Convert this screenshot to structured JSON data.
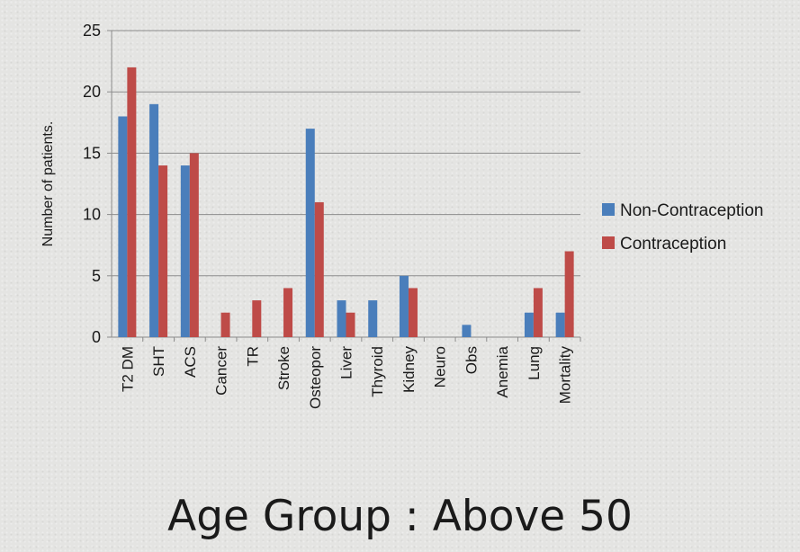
{
  "chart_data": {
    "type": "bar",
    "ylabel": "Number of patients.",
    "ylim": [
      0,
      25
    ],
    "yticks": [
      0,
      5,
      10,
      15,
      20,
      25
    ],
    "grid": true,
    "legend_position": "right",
    "categories": [
      "T2 DM",
      "SHT",
      "ACS",
      "Cancer",
      "TR",
      "Stroke",
      "Osteopor",
      "Liver",
      "Thyroid",
      "Kidney",
      "Neuro",
      "Obs",
      "Anemia",
      "Lung",
      "Mortality"
    ],
    "series": [
      {
        "name": "Non-Contraception",
        "color": "#4a7ebb",
        "values": [
          18,
          19,
          14,
          0,
          0,
          0,
          17,
          3,
          3,
          5,
          0,
          1,
          0,
          2,
          2
        ]
      },
      {
        "name": "Contraception",
        "color": "#be4b48",
        "values": [
          22,
          14,
          15,
          2,
          3,
          4,
          11,
          2,
          0,
          4,
          0,
          0,
          0,
          4,
          7
        ]
      }
    ]
  },
  "footer_title": "Age Group : Above 50"
}
